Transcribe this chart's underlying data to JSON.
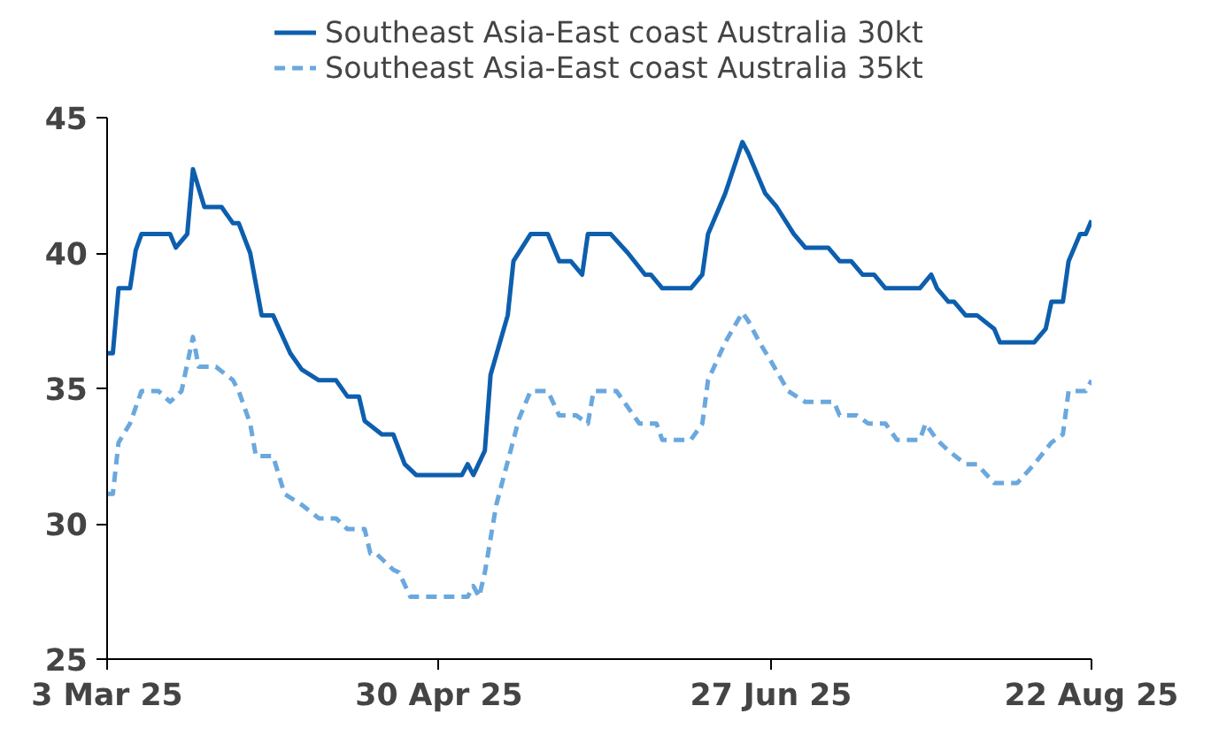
{
  "chart_data": {
    "type": "line",
    "xlim": [
      "2025-03-03",
      "2025-08-22"
    ],
    "ylim": [
      25,
      45
    ],
    "xticks": [
      {
        "value": "2025-03-03",
        "label": "3 Mar 25"
      },
      {
        "value": "2025-04-30",
        "label": "30 Apr 25"
      },
      {
        "value": "2025-06-27",
        "label": "27 Jun 25"
      },
      {
        "value": "2025-08-22",
        "label": "22 Aug 25"
      }
    ],
    "yticks": [
      25,
      30,
      35,
      40,
      45
    ],
    "grid": false,
    "legend": "top",
    "marker": "none",
    "series": [
      {
        "name": "Southeast Asia-East coast Australia 30kt",
        "color": "#0d5fae",
        "line_style": "solid",
        "x": [
          "2025-03-03",
          "2025-03-04",
          "2025-03-05",
          "2025-03-07",
          "2025-03-08",
          "2025-03-09",
          "2025-03-14",
          "2025-03-15",
          "2025-03-17",
          "2025-03-18",
          "2025-03-20",
          "2025-03-23",
          "2025-03-25",
          "2025-03-26",
          "2025-03-28",
          "2025-03-30",
          "2025-04-01",
          "2025-04-04",
          "2025-04-06",
          "2025-04-09",
          "2025-04-12",
          "2025-04-14",
          "2025-04-16",
          "2025-04-17",
          "2025-04-20",
          "2025-04-22",
          "2025-04-24",
          "2025-04-26",
          "2025-05-04",
          "2025-05-05",
          "2025-05-06",
          "2025-05-08",
          "2025-05-09",
          "2025-05-12",
          "2025-05-13",
          "2025-05-16",
          "2025-05-19",
          "2025-05-21",
          "2025-05-23",
          "2025-05-25",
          "2025-05-26",
          "2025-05-30",
          "2025-06-02",
          "2025-06-05",
          "2025-06-06",
          "2025-06-08",
          "2025-06-13",
          "2025-06-15",
          "2025-06-16",
          "2025-06-19",
          "2025-06-22",
          "2025-06-23",
          "2025-06-25",
          "2025-06-26",
          "2025-06-28",
          "2025-07-01",
          "2025-07-03",
          "2025-07-07",
          "2025-07-09",
          "2025-07-11",
          "2025-07-13",
          "2025-07-15",
          "2025-07-17",
          "2025-07-23",
          "2025-07-25",
          "2025-07-26",
          "2025-07-28",
          "2025-07-29",
          "2025-07-31",
          "2025-08-02",
          "2025-08-05",
          "2025-08-06",
          "2025-08-12",
          "2025-08-14",
          "2025-08-15",
          "2025-08-17",
          "2025-08-18",
          "2025-08-20",
          "2025-08-21",
          "2025-08-22"
        ],
        "values": [
          36.3,
          36.3,
          38.7,
          38.7,
          40.1,
          40.7,
          40.7,
          40.2,
          40.7,
          43.1,
          41.7,
          41.7,
          41.1,
          41.1,
          40.0,
          37.7,
          37.7,
          36.3,
          35.7,
          35.3,
          35.3,
          34.7,
          34.7,
          33.8,
          33.3,
          33.3,
          32.2,
          31.8,
          31.8,
          32.2,
          31.8,
          32.7,
          35.5,
          37.7,
          39.7,
          40.7,
          40.7,
          39.7,
          39.7,
          39.2,
          40.7,
          40.7,
          40.0,
          39.2,
          39.2,
          38.7,
          38.7,
          39.2,
          40.7,
          42.2,
          44.1,
          43.7,
          42.7,
          42.2,
          41.7,
          40.7,
          40.2,
          40.2,
          39.7,
          39.7,
          39.2,
          39.2,
          38.7,
          38.7,
          39.2,
          38.7,
          38.2,
          38.2,
          37.7,
          37.7,
          37.2,
          36.7,
          36.7,
          37.2,
          38.2,
          38.2,
          39.7,
          40.7,
          40.7,
          41.2
        ]
      },
      {
        "name": "Southeast Asia-East coast Australia 35kt",
        "color": "#6aa8de",
        "line_style": "dashed",
        "x": [
          "2025-03-03",
          "2025-03-04",
          "2025-03-05",
          "2025-03-07",
          "2025-03-09",
          "2025-03-12",
          "2025-03-14",
          "2025-03-16",
          "2025-03-18",
          "2025-03-19",
          "2025-03-22",
          "2025-03-25",
          "2025-03-26",
          "2025-03-28",
          "2025-03-29",
          "2025-04-01",
          "2025-04-03",
          "2025-04-06",
          "2025-04-09",
          "2025-04-12",
          "2025-04-14",
          "2025-04-17",
          "2025-04-18",
          "2025-04-19",
          "2025-04-22",
          "2025-04-23",
          "2025-04-25",
          "2025-05-05",
          "2025-05-06",
          "2025-05-07",
          "2025-05-08",
          "2025-05-10",
          "2025-05-12",
          "2025-05-14",
          "2025-05-16",
          "2025-05-19",
          "2025-05-21",
          "2025-05-24",
          "2025-05-26",
          "2025-05-27",
          "2025-05-31",
          "2025-06-02",
          "2025-06-04",
          "2025-06-07",
          "2025-06-08",
          "2025-06-13",
          "2025-06-15",
          "2025-06-16",
          "2025-06-19",
          "2025-06-22",
          "2025-06-23",
          "2025-06-25",
          "2025-06-27",
          "2025-06-30",
          "2025-07-03",
          "2025-07-08",
          "2025-07-09",
          "2025-07-12",
          "2025-07-14",
          "2025-07-17",
          "2025-07-19",
          "2025-07-23",
          "2025-07-24",
          "2025-07-26",
          "2025-07-28",
          "2025-07-31",
          "2025-08-02",
          "2025-08-05",
          "2025-08-09",
          "2025-08-12",
          "2025-08-15",
          "2025-08-17",
          "2025-08-18",
          "2025-08-21",
          "2025-08-22"
        ],
        "values": [
          31.1,
          31.1,
          33.0,
          33.7,
          34.9,
          34.9,
          34.5,
          34.9,
          36.9,
          35.8,
          35.8,
          35.3,
          34.9,
          33.7,
          32.5,
          32.5,
          31.1,
          30.7,
          30.2,
          30.2,
          29.8,
          29.8,
          28.9,
          28.9,
          28.3,
          28.2,
          27.3,
          27.3,
          27.7,
          27.3,
          28.2,
          30.7,
          32.3,
          33.9,
          34.9,
          34.9,
          34.0,
          34.0,
          33.7,
          34.9,
          34.9,
          34.3,
          33.7,
          33.7,
          33.1,
          33.1,
          33.7,
          35.3,
          36.7,
          37.8,
          37.5,
          36.7,
          36.0,
          34.9,
          34.5,
          34.5,
          34.0,
          34.0,
          33.7,
          33.7,
          33.1,
          33.1,
          33.7,
          33.1,
          32.7,
          32.2,
          32.2,
          31.5,
          31.5,
          32.2,
          33.0,
          33.3,
          34.9,
          34.9,
          35.3
        ]
      }
    ]
  }
}
